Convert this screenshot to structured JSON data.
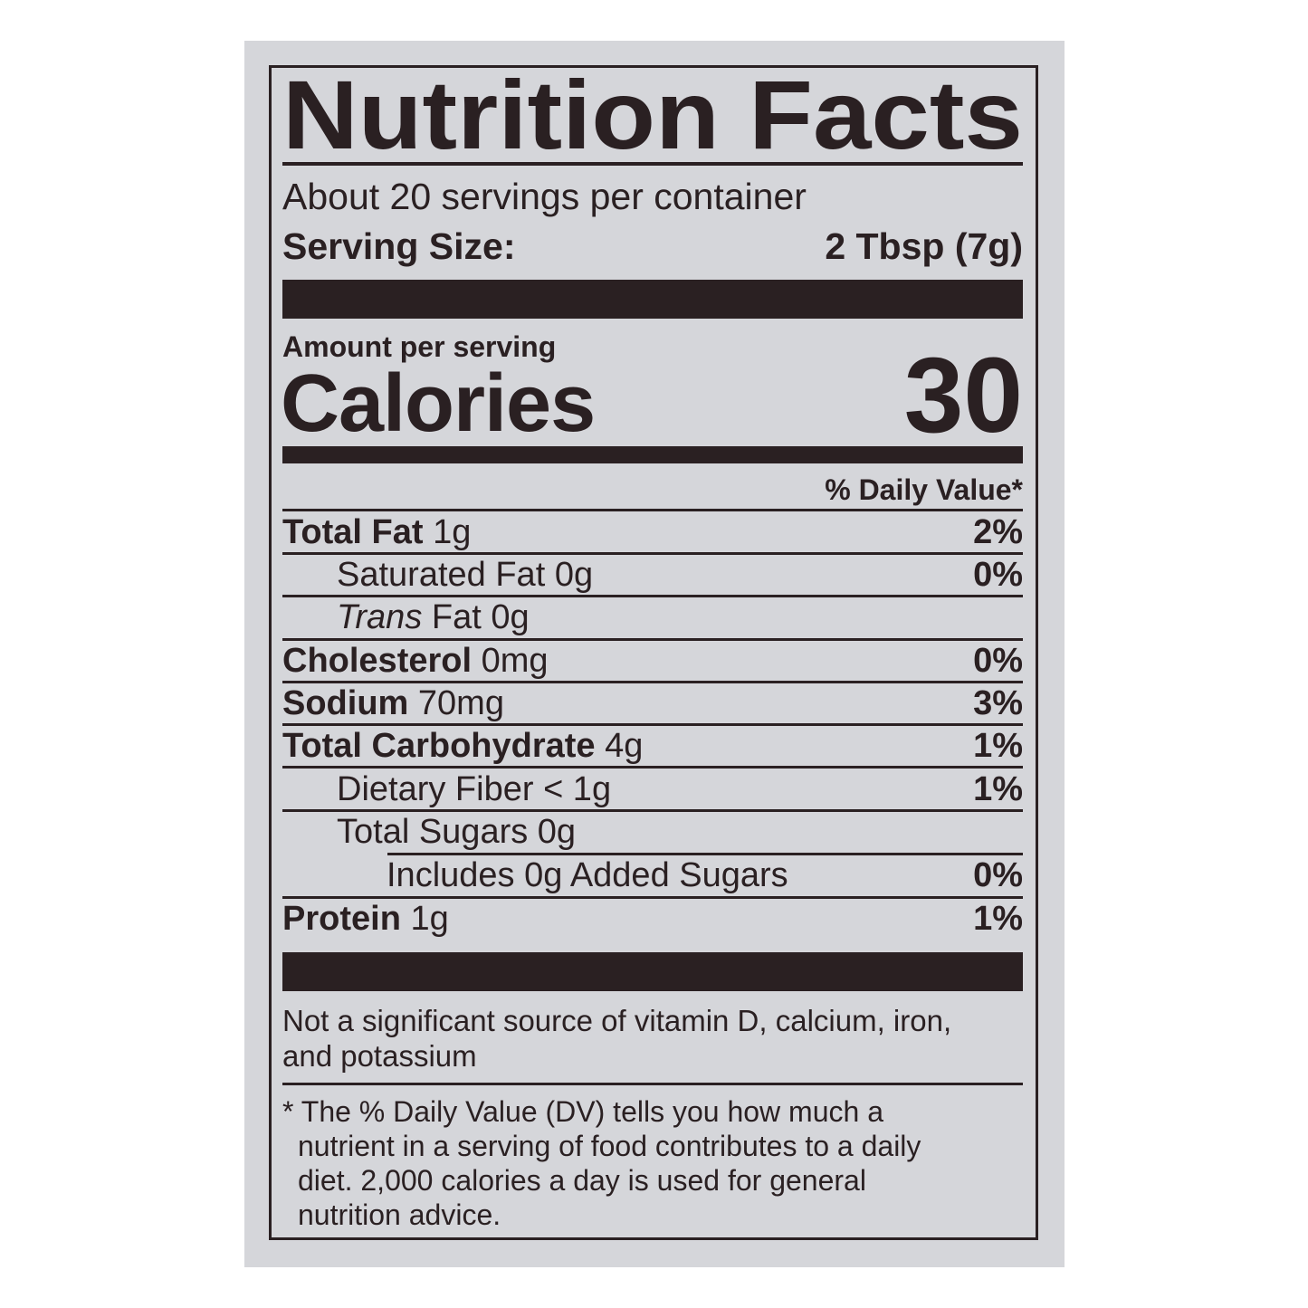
{
  "label": {
    "title": "Nutrition Facts",
    "servings_per_container": "About 20 servings per container",
    "serving_size_label": "Serving Size:",
    "serving_size_value": "2 Tbsp (7g)",
    "amount_per_serving": "Amount per serving",
    "calories_label": "Calories",
    "calories_value": "30",
    "daily_value_header": "% Daily Value*",
    "nutrients": [
      {
        "name": "Total Fat",
        "amount": "1g",
        "dv": "2%"
      },
      {
        "name": "Saturated Fat",
        "amount": "0g",
        "dv": "0%"
      },
      {
        "name": "Trans",
        "name_rest": "Fat",
        "amount": "0g",
        "dv": ""
      },
      {
        "name": "Cholesterol",
        "amount": "0mg",
        "dv": "0%"
      },
      {
        "name": "Sodium",
        "amount": "70mg",
        "dv": "3%"
      },
      {
        "name": "Total Carbohydrate",
        "amount": "4g",
        "dv": "1%"
      },
      {
        "name": "Dietary Fiber",
        "amount": "< 1g",
        "dv": "1%"
      },
      {
        "name": "Total Sugars",
        "amount": "0g",
        "dv": ""
      },
      {
        "name": "Includes 0g Added Sugars",
        "amount": "",
        "dv": "0%"
      },
      {
        "name": "Protein",
        "amount": "1g",
        "dv": "1%"
      }
    ],
    "not_significant_line1": "Not a significant source of vitamin D, calcium, iron,",
    "not_significant_line2": "and potassium",
    "footnote_lines": [
      "* The % Daily Value (DV) tells you how much a",
      "nutrient in a serving of food contributes to a daily",
      "diet. 2,000 calories a day is used for general",
      "nutrition advice."
    ]
  },
  "colors": {
    "ink": "#2a2022",
    "background": "#d5d6da"
  }
}
